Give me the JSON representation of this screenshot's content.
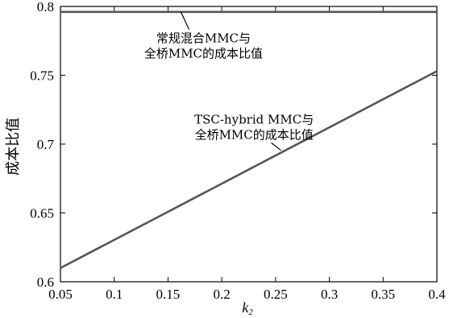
{
  "chart_data": {
    "type": "line",
    "xlabel": "k",
    "xlabel_sub": "2",
    "ylabel": "成本比值",
    "xlim": [
      0.05,
      0.4
    ],
    "ylim": [
      0.6,
      0.8
    ],
    "x_ticks": [
      "0.05",
      "0.1",
      "0.15",
      "0.2",
      "0.25",
      "0.3",
      "0.35",
      "0.4"
    ],
    "y_ticks": [
      "0.6",
      "0.65",
      "0.7",
      "0.75",
      "0.8"
    ],
    "grid": false,
    "series": [
      {
        "name": "常规混合MMC与全桥MMC的成本比值",
        "x": [
          0.05,
          0.4
        ],
        "y": [
          0.796,
          0.796
        ],
        "color": "#555555"
      },
      {
        "name": "TSC-hybrid MMC与全桥MMC的成本比值",
        "x": [
          0.05,
          0.4
        ],
        "y": [
          0.61,
          0.753
        ],
        "color": "#555555"
      }
    ],
    "annotations": [
      {
        "lines": [
          "常规混合MMC与",
          "全桥MMC的成本比值"
        ],
        "points_to_x": 0.162,
        "points_to_y": 0.796,
        "text_x": 0.183,
        "text_y": 0.774
      },
      {
        "lines": [
          "TSC-hybrid MMC与",
          "全桥MMC的成本比值"
        ],
        "points_to_x": 0.255,
        "points_to_y": 0.6955,
        "text_x": 0.23,
        "text_y": 0.715
      }
    ]
  }
}
